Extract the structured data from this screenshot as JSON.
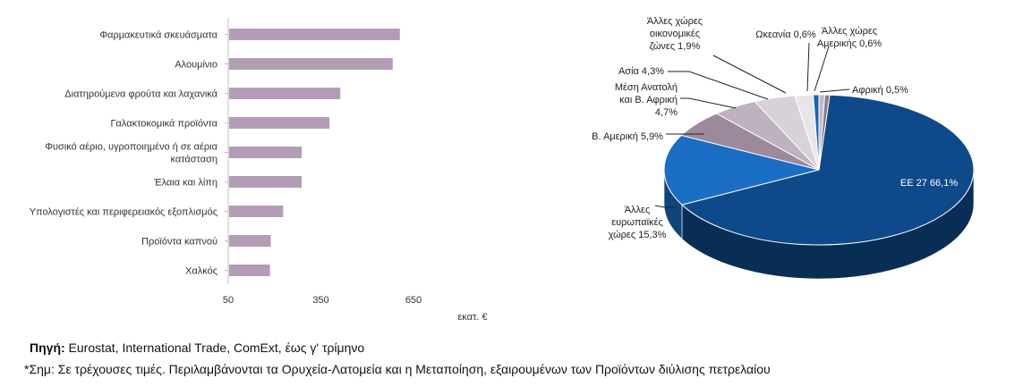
{
  "chart_data": [
    {
      "type": "bar",
      "orientation": "horizontal",
      "categories": [
        "Φαρμακευτικά σκευάσματα",
        "Αλουμίνιο",
        "Διατηρούμενα φρούτα και λαχανικά",
        "Γαλακτοκομικά προϊόντα",
        "Φυσικό αέριο, υγροποιημένο ή σε αέρια κατάσταση",
        "Έλαια και λίπη",
        "Υπολογιστές και περιφερειακός εξοπλισμός",
        "Προϊόντα καπνού",
        "Χαλκός"
      ],
      "values": [
        603,
        580,
        410,
        375,
        285,
        285,
        225,
        185,
        182
      ],
      "xlim": [
        50,
        650
      ],
      "xticks": [
        "50",
        "350",
        "650"
      ],
      "xlabel": "εκατ. €",
      "bar_color": "#b39cb5",
      "grid": false
    },
    {
      "type": "pie",
      "style": "3d",
      "slices": [
        {
          "label": "ΕΕ 27 66,1%",
          "value": 66.1,
          "color": "#0e4a8a"
        },
        {
          "label": "Άλλες ευρωπαϊκές χώρες 15,3%",
          "value": 15.3,
          "color": "#1a6ec4"
        },
        {
          "label": "Β. Αμερική 5,9%",
          "value": 5.9,
          "color": "#9c8a9c"
        },
        {
          "label": "Μέση Ανατολή και Β. Αφρική 4,7%",
          "value": 4.7,
          "color": "#bdb2bd"
        },
        {
          "label": "Ασία 4,3%",
          "value": 4.3,
          "color": "#d8d2d8"
        },
        {
          "label": "Άλλες χώρες οικονομικές ζώνες 1,9%",
          "value": 1.9,
          "color": "#e8e5e8"
        },
        {
          "label": "Ωκεανία 0,6%",
          "value": 0.6,
          "color": "#1565b8"
        },
        {
          "label": "Άλλες χώρες Αμερικής 0,6%",
          "value": 0.6,
          "color": "#c4b8c4"
        },
        {
          "label": "Αφρική 0,5%",
          "value": 0.5,
          "color": "#8a7a8c"
        }
      ],
      "label_lines": {
        "eu": [
          "ΕΕ 27 66,1%"
        ],
        "other_europe": [
          "Άλλες",
          "ευρωπαϊκές",
          "χώρες 15,3%"
        ],
        "north_america": [
          "Β. Αμερική 5,9%"
        ],
        "middle_east": [
          "Μέση Ανατολή",
          "και Β. Αφρική",
          "4,7%"
        ],
        "asia": [
          "Ασία 4,3%"
        ],
        "other_zones": [
          "Άλλες χώρες",
          "οικονομικές",
          "ζώνες 1,9%"
        ],
        "oceania": [
          "Ωκεανία 0,6%"
        ],
        "other_america": [
          "Άλλες χώρες",
          "Αμερικής 0,6%"
        ],
        "africa": [
          "Αφρική 0,5%"
        ]
      }
    }
  ],
  "footer": {
    "source_label": "Πηγή:",
    "source_text": " Eurostat, International Trade, ComExt, έως γ' τρίμηνο",
    "note": "*Σημ: Σε τρέχουσες τιμές. Περιλαμβάνονται τα Ορυχεία-Λατομεία και η Μεταποίηση, εξαιρουμένων των Προϊόντων διύλισης πετρελαίου"
  }
}
